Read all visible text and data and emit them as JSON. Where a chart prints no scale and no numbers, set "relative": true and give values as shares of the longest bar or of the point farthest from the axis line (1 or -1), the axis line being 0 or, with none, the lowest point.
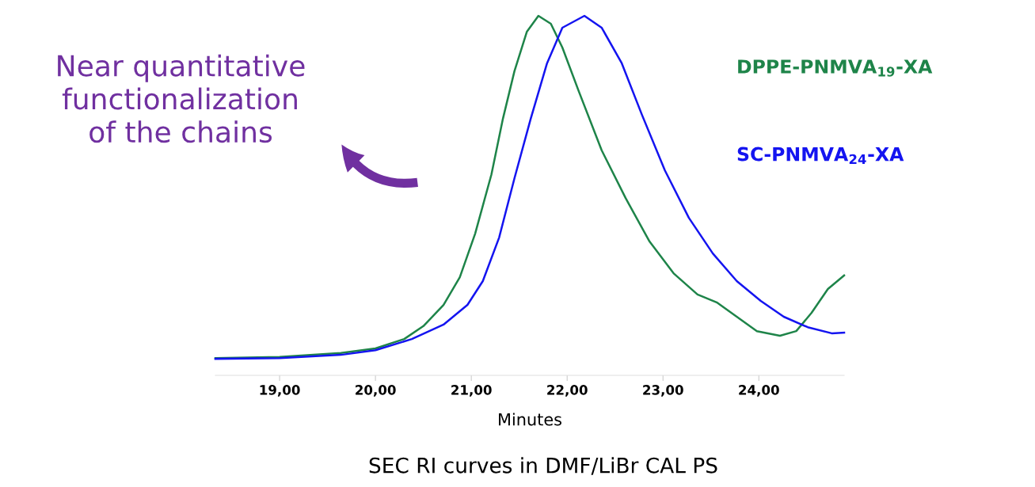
{
  "chart_data": {
    "type": "line",
    "relative": true,
    "xlabel": "Minutes",
    "xlim": [
      18.33,
      24.89
    ],
    "xticks": [
      {
        "value": 19,
        "label": "19,00"
      },
      {
        "value": 20,
        "label": "20,00"
      },
      {
        "value": 21,
        "label": "21,00"
      },
      {
        "value": 22,
        "label": "22,00"
      },
      {
        "value": 23,
        "label": "23,00"
      },
      {
        "value": 24,
        "label": "24,00"
      }
    ],
    "grid": false,
    "legend": false,
    "marker": "none",
    "line_style": "solid",
    "tick_labels": "x",
    "series": [
      {
        "name": "DPPE-PNMVA$_{19}$-XA",
        "color": "#1e8449",
        "x": [
          18.33,
          19.0,
          19.64,
          20.0,
          20.3,
          20.5,
          20.71,
          20.88,
          21.04,
          21.21,
          21.33,
          21.45,
          21.58,
          21.7,
          21.83,
          21.95,
          22.12,
          22.36,
          22.61,
          22.86,
          23.11,
          23.36,
          23.56,
          23.77,
          23.98,
          24.22,
          24.39,
          24.55,
          24.72,
          24.89
        ],
        "values": [
          0.048,
          0.051,
          0.062,
          0.075,
          0.101,
          0.137,
          0.196,
          0.273,
          0.394,
          0.559,
          0.714,
          0.846,
          0.956,
          1.0,
          0.978,
          0.912,
          0.791,
          0.626,
          0.493,
          0.372,
          0.284,
          0.225,
          0.203,
          0.163,
          0.123,
          0.11,
          0.123,
          0.174,
          0.24,
          0.278
        ]
      },
      {
        "name": "SC-PNMVA$_{24}$-XA",
        "color": "#1414f0",
        "x": [
          18.33,
          19.0,
          19.64,
          20.0,
          20.38,
          20.71,
          20.96,
          21.12,
          21.29,
          21.45,
          21.62,
          21.79,
          21.95,
          22.18,
          22.36,
          22.57,
          22.78,
          23.02,
          23.27,
          23.52,
          23.77,
          24.02,
          24.26,
          24.51,
          24.76,
          24.89
        ],
        "values": [
          0.046,
          0.048,
          0.057,
          0.07,
          0.101,
          0.141,
          0.196,
          0.262,
          0.383,
          0.548,
          0.714,
          0.868,
          0.967,
          1.0,
          0.967,
          0.868,
          0.725,
          0.57,
          0.438,
          0.339,
          0.262,
          0.207,
          0.163,
          0.134,
          0.117,
          0.119
        ]
      }
    ],
    "annotations": [
      "Near quantitative\nfunctionalization\nof the chains",
      "SEC RI curves in DMF/LiBr CAL PS"
    ]
  }
}
